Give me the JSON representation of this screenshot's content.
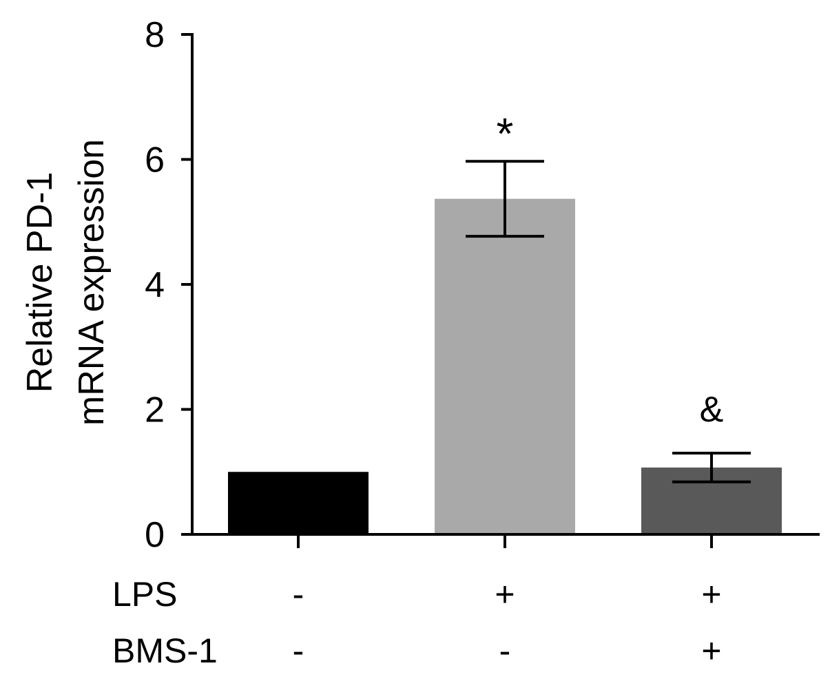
{
  "chart_data": {
    "type": "bar",
    "ylabel_lines": [
      "Relative PD-1",
      "mRNA expression"
    ],
    "ylim": [
      0,
      8
    ],
    "yticks": [
      0,
      2,
      4,
      6,
      8
    ],
    "grid": false,
    "bars": [
      {
        "value": 1.0,
        "error": 0.0,
        "color": "#000000",
        "annotation": ""
      },
      {
        "value": 5.37,
        "error": 0.6,
        "color": "#a9a9a9",
        "annotation": "*"
      },
      {
        "value": 1.07,
        "error": 0.23,
        "color": "#595959",
        "annotation": "&"
      }
    ],
    "treatments": [
      {
        "name": "LPS",
        "values": [
          "-",
          "+",
          "+"
        ]
      },
      {
        "name": "BMS-1",
        "values": [
          "-",
          "-",
          "+"
        ]
      }
    ]
  }
}
